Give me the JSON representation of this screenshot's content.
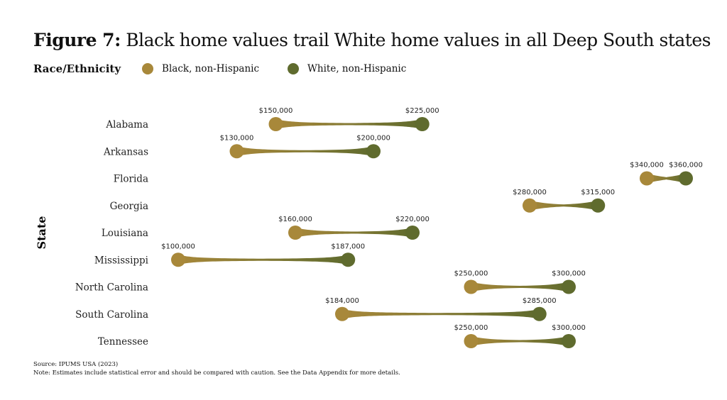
{
  "chart_data": {
    "type": "dumbbell",
    "title_bold": "Figure 7:",
    "title": "Black home values trail White home values in all Deep South states",
    "legend_title": "Race/Ethnicity",
    "ylabel": "State",
    "xlim": [
      100000,
      360000
    ],
    "legend_placement": "top-left",
    "series": [
      {
        "name": "Black, non-Hispanic",
        "color": "#a8883a"
      },
      {
        "name": "White, non-Hispanic",
        "color": "#5f6b2e"
      }
    ],
    "categories": [
      "Alabama",
      "Arkansas",
      "Florida",
      "Georgia",
      "Louisiana",
      "Mississippi",
      "North Carolina",
      "South Carolina",
      "Tennessee"
    ],
    "black": [
      150000,
      130000,
      340000,
      280000,
      160000,
      100000,
      250000,
      184000,
      250000
    ],
    "white": [
      225000,
      200000,
      360000,
      315000,
      220000,
      187000,
      300000,
      285000,
      300000
    ],
    "black_labels": [
      "$150,000",
      "$130,000",
      "$340,000",
      "$280,000",
      "$160,000",
      "$100,000",
      "$250,000",
      "$184,000",
      "$250,000"
    ],
    "white_labels": [
      "$225,000",
      "$200,000",
      "$360,000",
      "$315,000",
      "$220,000",
      "$187,000",
      "$300,000",
      "$285,000",
      "$300,000"
    ]
  },
  "footer": {
    "source": "Source: IPUMS USA (2023)",
    "note": "Note: Estimates include statistical error and should be compared with caution. See the Data Appendix for more details."
  }
}
